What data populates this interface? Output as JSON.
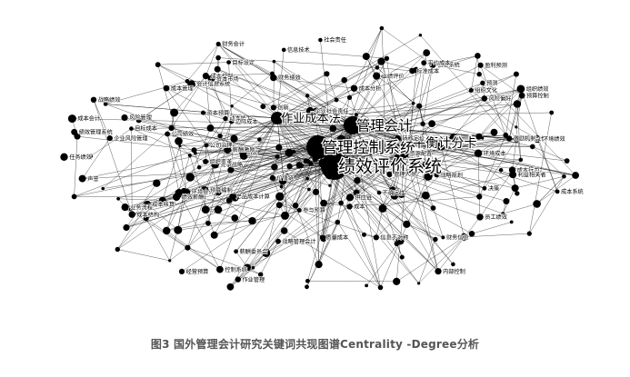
{
  "figure": {
    "caption": "图3 国外管理会计研究关键词共现图谱Centrality -Degree分析"
  },
  "network": {
    "major_nodes": [
      {
        "label": "绩效评价系统",
        "emphasis": 1.0
      },
      {
        "label": "管理控制系统",
        "emphasis": 0.8
      },
      {
        "label": "管理会计",
        "emphasis": 0.6
      },
      {
        "label": "平衡计分卡",
        "emphasis": 0.45
      },
      {
        "label": "作业成本法",
        "emphasis": 0.35
      }
    ],
    "labeled_nodes": [
      "绩效管理系统",
      "企业风险管理",
      "预算",
      "成本",
      "转移定价",
      "会计信息系统",
      "战略管理会计",
      "员工绩效",
      "成本管理",
      "组织文化",
      "公司绩效",
      "不确定性",
      "成本会计",
      "激励",
      "业绩评价",
      "风险管理",
      "创新",
      "预算控制",
      "环境绩效",
      "财务信息",
      "产品成本计算",
      "成本核算",
      "环境会计",
      "成本行为",
      "目标成本",
      "作业管理",
      "供应链",
      "质量成本",
      "责任会计",
      "成本系统",
      "经营预算",
      "成本分析",
      "预算编制",
      "管理人员",
      "资本预算",
      "财务绩效",
      "价值链",
      "信息技术",
      "信息系统",
      "风险偏好",
      "薪酬激励",
      "战略规划",
      "标准成本",
      "成本控制",
      "参与预算",
      "任务绩效",
      "盈利预测",
      "预测",
      "决策",
      "环境成本",
      "社会责任",
      "财务会计",
      "内部控制",
      "资本市场",
      "薪酬委员会",
      "企业社会责任",
      "公司治理",
      "激励机制",
      "利益相关者",
      "资源配置",
      "组织绩效",
      "动态能力",
      "战略绩效",
      "绩效薪酬",
      "目标设定",
      "平均成本",
      "边际成本",
      "成本结构",
      "竞争战略",
      "业务流程",
      "信息不对称",
      "声誉",
      "控制系统",
      "组织变革"
    ],
    "minor_node_count": 180,
    "edge_count": 620
  }
}
